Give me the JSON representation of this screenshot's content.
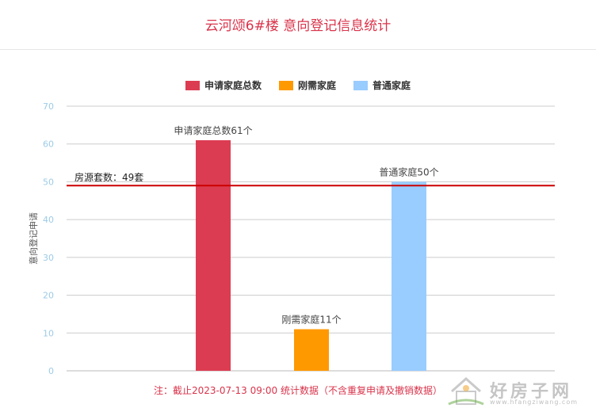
{
  "title": "云河颂6#楼 意向登记信息统计",
  "legend": [
    {
      "name": "申请家庭总数",
      "color": "#dc3c52"
    },
    {
      "name": "刚需家庭",
      "color": "#ff9900"
    },
    {
      "name": "普通家庭",
      "color": "#99ccff"
    }
  ],
  "note": "注：截止2023-07-13 09:00 统计数据（不含重复申请及撤销数据）",
  "watermark": {
    "text": "好房子网",
    "url": "www.hfangziwang.com"
  },
  "chart_data": {
    "type": "bar",
    "categories": [
      "申请家庭总数",
      "刚需家庭",
      "普通家庭"
    ],
    "values": [
      61,
      11,
      50
    ],
    "colors": [
      "#dc3c52",
      "#ff9900",
      "#99ccff"
    ],
    "data_labels": [
      "申请家庭总数61个",
      "刚需家庭11个",
      "普通家庭50个"
    ],
    "ylabel": "意向登记申请",
    "ylim": [
      0,
      70
    ],
    "yticks": [
      0,
      10,
      20,
      30,
      40,
      50,
      60,
      70
    ],
    "grid": true,
    "legend_position": "top-center",
    "reference_line": {
      "value": 49,
      "label": "房源套数：49套",
      "color": "#cc0000"
    }
  }
}
